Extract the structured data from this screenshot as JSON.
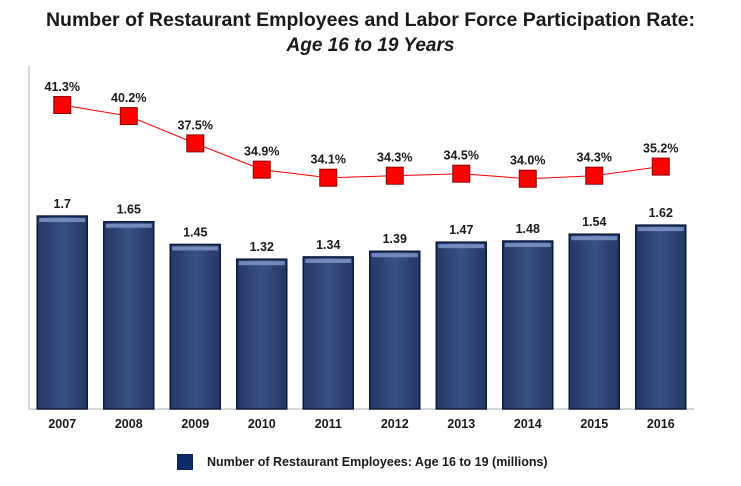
{
  "chart_data": {
    "type": "bar",
    "title": "Number of Restaurant Employees and Labor Force Participation Rate:",
    "subtitle": "Age 16 to 19 Years",
    "categories": [
      "2007",
      "2008",
      "2009",
      "2010",
      "2011",
      "2012",
      "2013",
      "2014",
      "2015",
      "2016"
    ],
    "series": [
      {
        "name": "Number of Restaurant Employees: Age 16 to 19 (millions)",
        "type": "bar",
        "values": [
          1.7,
          1.65,
          1.45,
          1.32,
          1.34,
          1.39,
          1.47,
          1.48,
          1.54,
          1.62
        ],
        "labels": [
          "1.7",
          "1.65",
          "1.45",
          "1.32",
          "1.34",
          "1.39",
          "1.47",
          "1.48",
          "1.54",
          "1.62"
        ],
        "color": "#34497a"
      },
      {
        "type": "line",
        "values": [
          41.3,
          40.2,
          37.5,
          34.9,
          34.1,
          34.3,
          34.5,
          34.0,
          34.3,
          35.2
        ],
        "labels": [
          "41.3%",
          "40.2%",
          "37.5%",
          "34.9%",
          "34.1%",
          "34.3%",
          "34.5%",
          "34.0%",
          "34.3%",
          "35.2%"
        ],
        "color": "#ff0000"
      }
    ],
    "legend": {
      "position": "bottom",
      "entries": [
        "Number of Restaurant Employees: Age 16 to 19 (millions)"
      ]
    },
    "grid": false
  }
}
